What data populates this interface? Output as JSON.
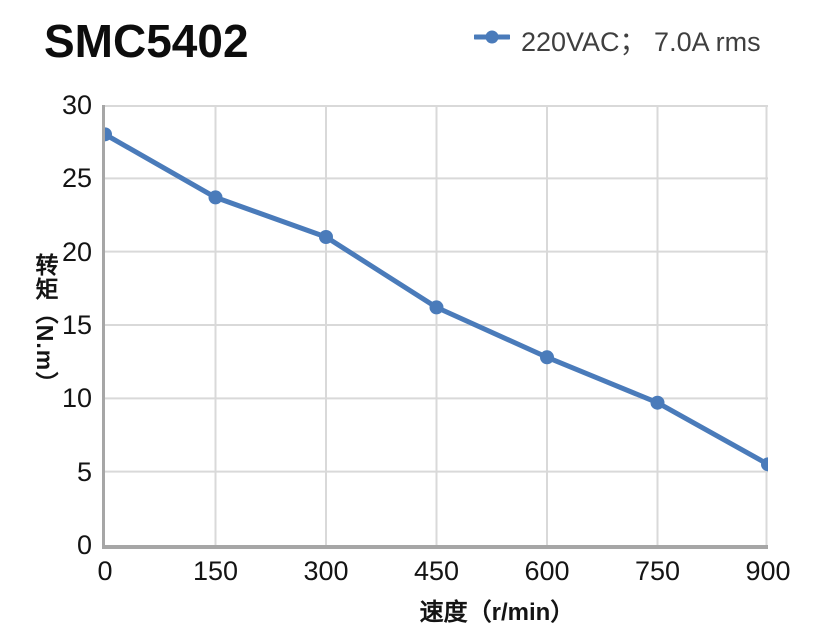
{
  "colors": {
    "line": "#4a7bba",
    "marker": "#4a7bba",
    "grid": "#d9d9d9",
    "axis": "#a6a6a6",
    "title_text": "#0d0d0d",
    "tick_text": "#141414",
    "legend_text": "#3f3f3f"
  },
  "chart_data": {
    "type": "line",
    "title": "SMC5402",
    "x": [
      0,
      150,
      300,
      450,
      600,
      750,
      900
    ],
    "series": [
      {
        "name": "220VAC； 7.0A rms",
        "values": [
          28,
          23.7,
          21,
          16.2,
          12.8,
          9.7,
          5.5
        ]
      }
    ],
    "xlabel": "速度（r/min）",
    "ylabel": "转矩（N.m）",
    "xlim": [
      0,
      900
    ],
    "ylim": [
      0,
      30
    ],
    "x_ticks": [
      0,
      150,
      300,
      450,
      600,
      750,
      900
    ],
    "y_ticks": [
      0,
      5,
      10,
      15,
      20,
      25,
      30
    ],
    "grid": true,
    "legend_position": "top-right",
    "marker": "circle"
  }
}
